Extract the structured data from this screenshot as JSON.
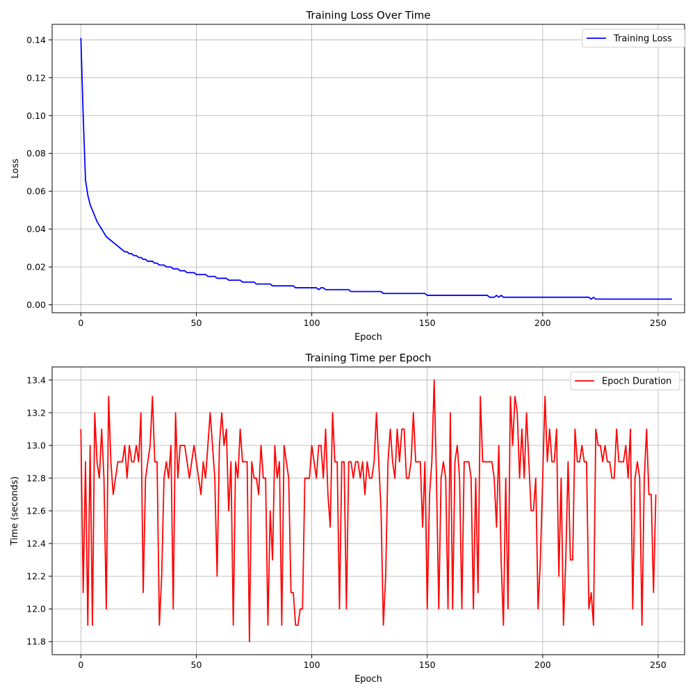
{
  "chart_data": [
    {
      "type": "line",
      "title": "Training Loss Over Time",
      "xlabel": "Epoch",
      "ylabel": "Loss",
      "xlim": [
        -12.45,
        261.45
      ],
      "ylim": [
        -0.0042,
        0.1482
      ],
      "xticks": [
        0,
        50,
        100,
        150,
        200,
        250
      ],
      "yticks": [
        0.0,
        0.02,
        0.04,
        0.06,
        0.08,
        0.1,
        0.12,
        0.14
      ],
      "ytick_labels": [
        "0.00",
        "0.02",
        "0.04",
        "0.06",
        "0.08",
        "0.10",
        "0.12",
        "0.14"
      ],
      "grid": true,
      "legend_position": "top-right",
      "series": [
        {
          "name": "Training Loss",
          "color": "#0000ff",
          "x_start": 0,
          "x_step": 1,
          "values": [
            0.141,
            0.1,
            0.066,
            0.058,
            0.053,
            0.05,
            0.047,
            0.044,
            0.042,
            0.04,
            0.038,
            0.036,
            0.035,
            0.034,
            0.033,
            0.032,
            0.031,
            0.03,
            0.029,
            0.028,
            0.028,
            0.027,
            0.027,
            0.026,
            0.026,
            0.025,
            0.025,
            0.024,
            0.024,
            0.023,
            0.023,
            0.023,
            0.022,
            0.022,
            0.021,
            0.021,
            0.021,
            0.02,
            0.02,
            0.02,
            0.019,
            0.019,
            0.019,
            0.018,
            0.018,
            0.018,
            0.017,
            0.017,
            0.017,
            0.017,
            0.016,
            0.016,
            0.016,
            0.016,
            0.016,
            0.015,
            0.015,
            0.015,
            0.015,
            0.014,
            0.014,
            0.014,
            0.014,
            0.014,
            0.013,
            0.013,
            0.013,
            0.013,
            0.013,
            0.013,
            0.012,
            0.012,
            0.012,
            0.012,
            0.012,
            0.012,
            0.011,
            0.011,
            0.011,
            0.011,
            0.011,
            0.011,
            0.011,
            0.01,
            0.01,
            0.01,
            0.01,
            0.01,
            0.01,
            0.01,
            0.01,
            0.01,
            0.01,
            0.009,
            0.009,
            0.009,
            0.009,
            0.009,
            0.009,
            0.009,
            0.009,
            0.009,
            0.009,
            0.008,
            0.009,
            0.009,
            0.008,
            0.008,
            0.008,
            0.008,
            0.008,
            0.008,
            0.008,
            0.008,
            0.008,
            0.008,
            0.008,
            0.007,
            0.007,
            0.007,
            0.007,
            0.007,
            0.007,
            0.007,
            0.007,
            0.007,
            0.007,
            0.007,
            0.007,
            0.007,
            0.007,
            0.006,
            0.006,
            0.006,
            0.006,
            0.006,
            0.006,
            0.006,
            0.006,
            0.006,
            0.006,
            0.006,
            0.006,
            0.006,
            0.006,
            0.006,
            0.006,
            0.006,
            0.006,
            0.006,
            0.005,
            0.005,
            0.005,
            0.005,
            0.005,
            0.005,
            0.005,
            0.005,
            0.005,
            0.005,
            0.005,
            0.005,
            0.005,
            0.005,
            0.005,
            0.005,
            0.005,
            0.005,
            0.005,
            0.005,
            0.005,
            0.005,
            0.005,
            0.005,
            0.005,
            0.005,
            0.005,
            0.004,
            0.004,
            0.004,
            0.005,
            0.004,
            0.005,
            0.004,
            0.004,
            0.004,
            0.004,
            0.004,
            0.004,
            0.004,
            0.004,
            0.004,
            0.004,
            0.004,
            0.004,
            0.004,
            0.004,
            0.004,
            0.004,
            0.004,
            0.004,
            0.004,
            0.004,
            0.004,
            0.004,
            0.004,
            0.004,
            0.004,
            0.004,
            0.004,
            0.004,
            0.004,
            0.004,
            0.004,
            0.004,
            0.004,
            0.004,
            0.004,
            0.004,
            0.004,
            0.004,
            0.003,
            0.004,
            0.003,
            0.003,
            0.003,
            0.003,
            0.003,
            0.003,
            0.003,
            0.003,
            0.003,
            0.003,
            0.003,
            0.003,
            0.003,
            0.003,
            0.003,
            0.003,
            0.003,
            0.003,
            0.003,
            0.003,
            0.003,
            0.003,
            0.003,
            0.003,
            0.003,
            0.003,
            0.003,
            0.003,
            0.003,
            0.003,
            0.003,
            0.003,
            0.003,
            0.003
          ]
        }
      ]
    },
    {
      "type": "line",
      "title": "Training Time per Epoch",
      "xlabel": "Epoch",
      "ylabel": "Time (seconds)",
      "xlim": [
        -12.45,
        261.45
      ],
      "ylim": [
        11.72,
        13.48
      ],
      "xticks": [
        0,
        50,
        100,
        150,
        200,
        250
      ],
      "yticks": [
        11.8,
        12.0,
        12.2,
        12.4,
        12.6,
        12.8,
        13.0,
        13.2,
        13.4
      ],
      "ytick_labels": [
        "11.8",
        "12.0",
        "12.2",
        "12.4",
        "12.6",
        "12.8",
        "13.0",
        "13.2",
        "13.4"
      ],
      "grid": true,
      "legend_position": "top-right",
      "series": [
        {
          "name": "Epoch Duration",
          "color": "#ff0000",
          "x_start": 0,
          "x_step": 1,
          "values": [
            13.1,
            12.1,
            12.9,
            11.9,
            13.0,
            11.9,
            13.2,
            12.9,
            12.8,
            13.1,
            12.8,
            12.0,
            13.3,
            12.9,
            12.7,
            12.8,
            12.9,
            12.9,
            12.9,
            13.0,
            12.8,
            13.0,
            12.9,
            12.9,
            13.0,
            12.9,
            13.2,
            12.1,
            12.8,
            12.9,
            13.0,
            13.3,
            12.9,
            12.9,
            11.9,
            12.2,
            12.8,
            12.9,
            12.8,
            13.0,
            12.0,
            13.2,
            12.8,
            13.0,
            13.0,
            13.0,
            12.9,
            12.8,
            12.9,
            13.0,
            12.9,
            12.8,
            12.7,
            12.9,
            12.8,
            13.0,
            13.2,
            13.0,
            12.8,
            12.2,
            13.0,
            13.2,
            13.0,
            13.1,
            12.6,
            12.9,
            11.9,
            12.9,
            12.8,
            13.1,
            12.9,
            12.9,
            12.9,
            11.8,
            12.9,
            12.8,
            12.8,
            12.7,
            13.0,
            12.8,
            12.8,
            11.9,
            12.6,
            12.3,
            13.0,
            12.8,
            12.9,
            11.9,
            13.0,
            12.9,
            12.8,
            12.1,
            12.1,
            11.9,
            11.9,
            12.0,
            12.0,
            12.8,
            12.8,
            12.8,
            13.0,
            12.9,
            12.8,
            13.0,
            13.0,
            12.8,
            13.1,
            12.7,
            12.5,
            13.2,
            12.9,
            12.9,
            12.0,
            12.9,
            12.9,
            12.0,
            12.9,
            12.9,
            12.8,
            12.9,
            12.9,
            12.8,
            12.9,
            12.7,
            12.9,
            12.8,
            12.8,
            12.9,
            13.2,
            12.9,
            12.6,
            11.9,
            12.2,
            12.9,
            13.1,
            12.9,
            12.8,
            13.1,
            12.9,
            13.1,
            13.1,
            12.8,
            12.8,
            12.9,
            13.2,
            12.9,
            12.9,
            12.9,
            12.5,
            12.9,
            12.0,
            12.7,
            12.9,
            13.4,
            12.8,
            12.0,
            12.8,
            12.9,
            12.8,
            12.0,
            13.2,
            12.0,
            12.9,
            13.0,
            12.8,
            12.0,
            12.9,
            12.9,
            12.9,
            12.8,
            12.0,
            12.8,
            12.1,
            13.3,
            12.9,
            12.9,
            12.9,
            12.9,
            12.9,
            12.8,
            12.5,
            13.0,
            12.3,
            11.9,
            12.8,
            12.0,
            13.3,
            13.0,
            13.3,
            13.2,
            12.8,
            13.1,
            12.8,
            13.2,
            12.9,
            12.6,
            12.6,
            12.8,
            12.0,
            12.3,
            12.8,
            13.3,
            12.9,
            13.1,
            12.9,
            12.9,
            13.1,
            12.2,
            12.8,
            11.9,
            12.3,
            12.9,
            12.3,
            12.3,
            13.1,
            12.9,
            12.9,
            13.0,
            12.9,
            12.9,
            12.0,
            12.1,
            11.9,
            13.1,
            13.0,
            13.0,
            12.9,
            13.0,
            12.9,
            12.9,
            12.8,
            12.8,
            13.1,
            12.9,
            12.9,
            12.9,
            13.0,
            12.8,
            13.1,
            12.0,
            12.8,
            12.9,
            12.8,
            11.9,
            12.8,
            13.1,
            12.7,
            12.7,
            12.1,
            12.7
          ]
        }
      ]
    }
  ]
}
